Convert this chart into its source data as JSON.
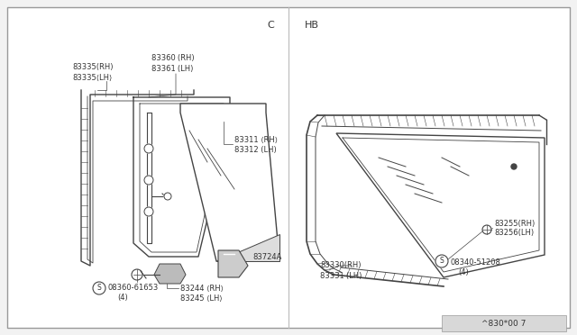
{
  "bg_color": "#f2f2f2",
  "panel_bg": "#ffffff",
  "line_color": "#444444",
  "text_color": "#333333",
  "title_c": "C",
  "title_hb": "HB",
  "footer_text": "^830*00 7",
  "label_fs": 6.0
}
